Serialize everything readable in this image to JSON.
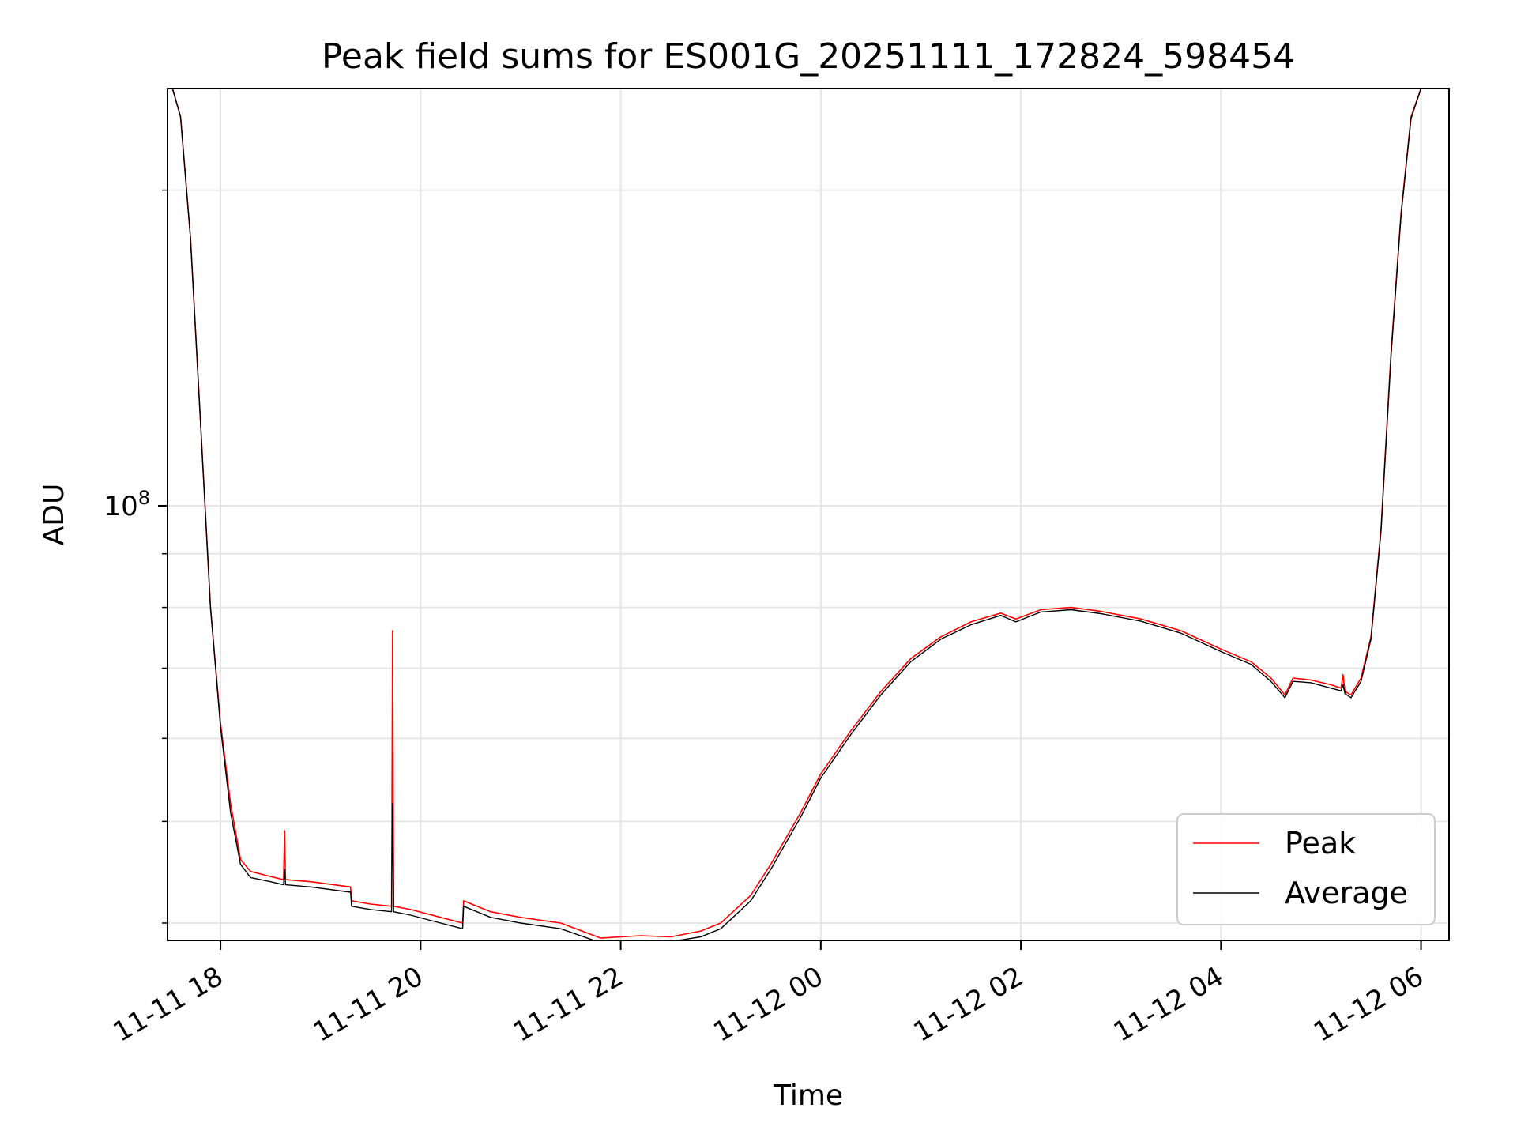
{
  "chart_data": {
    "type": "line",
    "title": "Peak field sums for ES001G_20251111_172824_598454",
    "xlabel": "Time",
    "ylabel": "ADU",
    "yscale": "log",
    "ylim": [
      38500000,
      250000000
    ],
    "xlim_hours": [
      17.47,
      30.28
    ],
    "grid": true,
    "legend_location": "lower right",
    "x_ticks": [
      {
        "hour": 18,
        "label": "11-11 18"
      },
      {
        "hour": 20,
        "label": "11-11 20"
      },
      {
        "hour": 22,
        "label": "11-11 22"
      },
      {
        "hour": 24,
        "label": "11-12 00"
      },
      {
        "hour": 26,
        "label": "11-12 02"
      },
      {
        "hour": 28,
        "label": "11-12 04"
      },
      {
        "hour": 30,
        "label": "11-12 06"
      }
    ],
    "y_major_ticks": [
      {
        "value": 100000000,
        "base": "10",
        "exp": "8"
      }
    ],
    "y_minor_ticks": [
      40000000,
      50000000,
      60000000,
      70000000,
      80000000,
      90000000,
      200000000
    ],
    "x_unit": "hours since 2025-11-11 00:00",
    "series": [
      {
        "name": "Peak",
        "color": "#ff0000",
        "x": [
          17.52,
          17.6,
          17.7,
          17.8,
          17.9,
          18.0,
          18.1,
          18.2,
          18.3,
          18.5,
          18.63,
          18.64,
          18.65,
          18.9,
          19.3,
          19.31,
          19.5,
          19.71,
          19.72,
          19.73,
          19.9,
          20.2,
          20.42,
          20.43,
          20.7,
          21.0,
          21.4,
          21.8,
          22.2,
          22.5,
          22.8,
          23.0,
          23.3,
          23.5,
          23.8,
          24.0,
          24.3,
          24.6,
          24.9,
          25.2,
          25.5,
          25.8,
          25.95,
          26.2,
          26.5,
          26.8,
          27.2,
          27.6,
          28.0,
          28.3,
          28.5,
          28.64,
          28.72,
          28.9,
          29.1,
          29.2,
          29.22,
          29.24,
          29.3,
          29.4,
          29.5,
          29.6,
          29.7,
          29.8,
          29.9,
          30.0
        ],
        "y": [
          250000000,
          235000000,
          180000000,
          120000000,
          80000000,
          62000000,
          52000000,
          46000000,
          44800000,
          44300000,
          44000000,
          49000000,
          44000000,
          43800000,
          43300000,
          42000000,
          41700000,
          41500000,
          76000000,
          41500000,
          41200000,
          40500000,
          40000000,
          42000000,
          41000000,
          40500000,
          40000000,
          38700000,
          38900000,
          38800000,
          39300000,
          40000000,
          42500000,
          45500000,
          51000000,
          55500000,
          61000000,
          66500000,
          71500000,
          75000000,
          77500000,
          79000000,
          78000000,
          79600000,
          80000000,
          79300000,
          78000000,
          76000000,
          73000000,
          71000000,
          68500000,
          66000000,
          68500000,
          68200000,
          67500000,
          67000000,
          69000000,
          66500000,
          66000000,
          68500000,
          75000000,
          95000000,
          140000000,
          190000000,
          235000000,
          250000000
        ]
      },
      {
        "name": "Average",
        "color": "#000000",
        "x": [
          17.52,
          17.6,
          17.7,
          17.8,
          17.9,
          18.0,
          18.1,
          18.2,
          18.3,
          18.5,
          18.63,
          18.64,
          18.65,
          18.9,
          19.3,
          19.31,
          19.5,
          19.71,
          19.72,
          19.73,
          19.9,
          20.2,
          20.42,
          20.43,
          20.7,
          21.0,
          21.4,
          21.8,
          22.2,
          22.5,
          22.8,
          23.0,
          23.3,
          23.5,
          23.8,
          24.0,
          24.3,
          24.6,
          24.9,
          25.2,
          25.5,
          25.8,
          25.95,
          26.2,
          26.5,
          26.8,
          27.2,
          27.6,
          28.0,
          28.3,
          28.5,
          28.64,
          28.72,
          28.9,
          29.1,
          29.2,
          29.22,
          29.24,
          29.3,
          29.4,
          29.5,
          29.6,
          29.7,
          29.8,
          29.9,
          30.0
        ],
        "y": [
          250000000,
          235000000,
          180000000,
          120000000,
          80000000,
          61500000,
          51000000,
          45500000,
          44200000,
          43800000,
          43500000,
          45000000,
          43500000,
          43300000,
          42800000,
          41500000,
          41200000,
          41000000,
          52000000,
          41000000,
          40700000,
          40000000,
          39500000,
          41500000,
          40500000,
          40000000,
          39500000,
          38300000,
          38500000,
          38400000,
          38800000,
          39500000,
          42000000,
          45000000,
          50500000,
          55000000,
          60500000,
          66000000,
          71000000,
          74600000,
          77000000,
          78600000,
          77500000,
          79200000,
          79600000,
          78900000,
          77600000,
          75600000,
          72600000,
          70600000,
          68000000,
          65600000,
          68000000,
          67800000,
          67000000,
          66600000,
          67500000,
          66200000,
          65600000,
          68000000,
          74600000,
          94500000,
          139000000,
          189000000,
          234000000,
          250000000
        ]
      }
    ]
  }
}
